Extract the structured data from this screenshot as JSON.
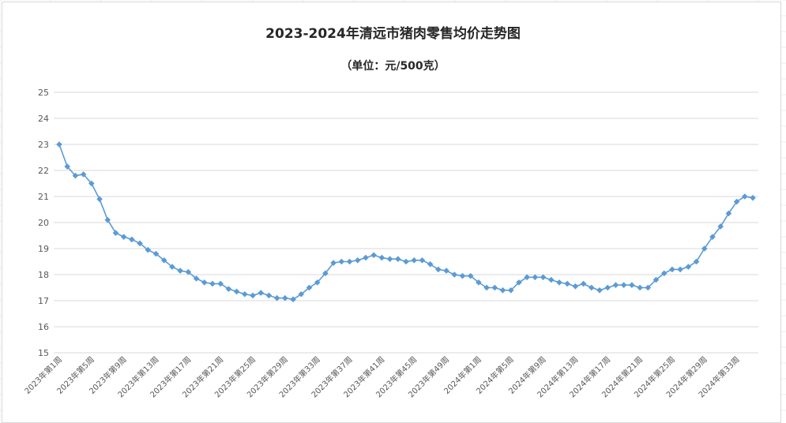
{
  "title": "2023-2024年清远市猪肉零售均价走势图",
  "subtitle": "（单位：元/500克）",
  "colors": {
    "series": "#5b9bd5",
    "grid": "#d9d9d9",
    "axis_text": "#595959"
  },
  "chart_data": {
    "type": "line",
    "title": "2023-2024年清远市猪肉零售均价走势图",
    "subtitle": "（单位：元/500克）",
    "ylim": [
      15,
      25
    ],
    "yticks": [
      15,
      16,
      17,
      18,
      19,
      20,
      21,
      22,
      23,
      24,
      25
    ],
    "grid": true,
    "marker": "diamond",
    "x_labels": [
      "2023年第1周",
      "2023年第5周",
      "2023年第9周",
      "2023年第13周",
      "2023年第17周",
      "2023年第21周",
      "2023年第25周",
      "2023年第29周",
      "2023年第33周",
      "2023年第37周",
      "2023年第41周",
      "2023年第45周",
      "2023年第49周",
      "2024年第1周",
      "2024年第5周",
      "2024年第9周",
      "2024年第13周",
      "2024年第17周",
      "2024年第21周",
      "2024年第25周",
      "2024年第29周",
      "2024年第33周"
    ],
    "x_label_step": 4,
    "values": [
      23.0,
      22.15,
      21.8,
      21.85,
      21.5,
      20.9,
      20.1,
      19.6,
      19.45,
      19.35,
      19.2,
      18.95,
      18.8,
      18.55,
      18.3,
      18.15,
      18.1,
      17.85,
      17.7,
      17.65,
      17.65,
      17.45,
      17.35,
      17.25,
      17.2,
      17.3,
      17.2,
      17.1,
      17.1,
      17.05,
      17.25,
      17.5,
      17.7,
      18.05,
      18.45,
      18.5,
      18.5,
      18.55,
      18.65,
      18.75,
      18.65,
      18.6,
      18.6,
      18.5,
      18.55,
      18.55,
      18.4,
      18.2,
      18.15,
      18.0,
      17.95,
      17.95,
      17.7,
      17.5,
      17.5,
      17.4,
      17.4,
      17.7,
      17.9,
      17.9,
      17.9,
      17.8,
      17.7,
      17.65,
      17.55,
      17.65,
      17.5,
      17.4,
      17.5,
      17.6,
      17.6,
      17.6,
      17.5,
      17.5,
      17.8,
      18.05,
      18.2,
      18.2,
      18.3,
      18.5,
      19.0,
      19.45,
      19.85,
      20.35,
      20.8,
      21.0,
      20.95
    ]
  }
}
